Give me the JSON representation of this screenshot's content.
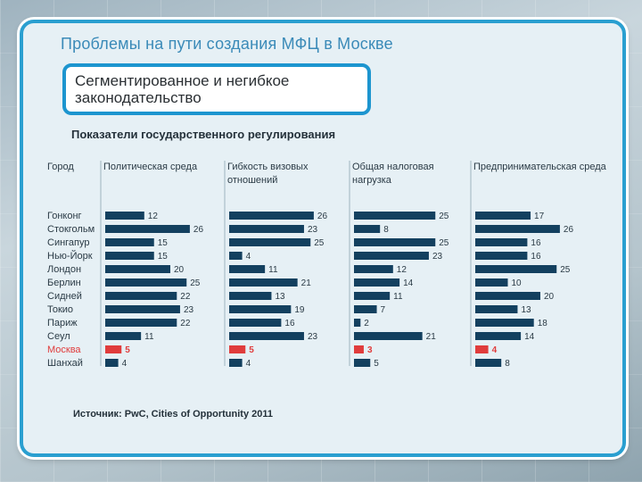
{
  "title": "Проблемы на пути создания МФЦ в Москве",
  "subtitle_line1": "Сегментированное и негибкое",
  "subtitle_line2": "законодательство",
  "section_title": "Показатели государственного регулирования",
  "source": "Источник: PwC, Cities of Opportunity 2011",
  "colors": {
    "bar": "#13405f",
    "highlight": "#e03c3c",
    "text": "#2a3a45"
  },
  "chart_data": {
    "type": "bar",
    "city_header": "Город",
    "categories": [
      "Гонконг",
      "Стокгольм",
      "Сингапур",
      "Нью-Йорк",
      "Лондон",
      "Берлин",
      "Сидней",
      "Токио",
      "Париж",
      "Сеул",
      "Москва",
      "Шанхай"
    ],
    "highlight_category": "Москва",
    "series": [
      {
        "name_lines": [
          "Политическая среда"
        ],
        "values": [
          12,
          26,
          15,
          15,
          20,
          25,
          22,
          23,
          22,
          11,
          5,
          4
        ]
      },
      {
        "name_lines": [
          "Гибкость визовых",
          "отношений"
        ],
        "values": [
          26,
          23,
          25,
          4,
          11,
          21,
          13,
          19,
          16,
          23,
          5,
          4
        ]
      },
      {
        "name_lines": [
          "Общая налоговая",
          "нагрузка"
        ],
        "values": [
          25,
          8,
          25,
          23,
          12,
          14,
          11,
          7,
          2,
          21,
          3,
          5
        ]
      },
      {
        "name_lines": [
          "Предпринимательская среда"
        ],
        "values": [
          17,
          26,
          16,
          16,
          25,
          10,
          20,
          13,
          18,
          14,
          4,
          8
        ]
      }
    ]
  }
}
